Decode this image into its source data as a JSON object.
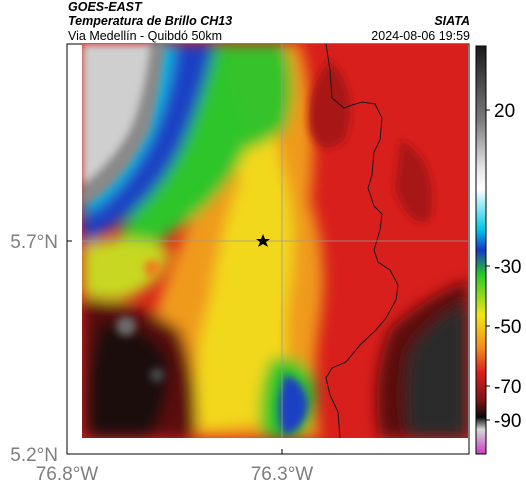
{
  "header": {
    "source": "GOES-EAST",
    "product": "Temperatura de Brillo CH13",
    "org": "SIATA",
    "region": "Via Medellín - Quibdó 50km",
    "timestamp": "2024-08-06 19:59"
  },
  "axes": {
    "x_ticks": [
      "76.8°W",
      "76.3°W"
    ],
    "y_ticks": [
      "5.7°N",
      "5.2°N"
    ]
  },
  "colorbar": {
    "ticks": [
      "20",
      "-30",
      "-50",
      "-70",
      "-90"
    ],
    "colors": {
      "gray_warm": "#f2f2f2",
      "gray_cold": "#2a2a2a",
      "cyan": "#00c8e6",
      "blue": "#1438c8",
      "green": "#28c828",
      "yellow": "#f0e614",
      "orange": "#f08c1e",
      "red": "#dc1e1e",
      "dark_red": "#781414",
      "black": "#0a0a0a",
      "magenta": "#c83cc8"
    }
  },
  "marker": {
    "symbol": "star",
    "color": "#000000"
  }
}
